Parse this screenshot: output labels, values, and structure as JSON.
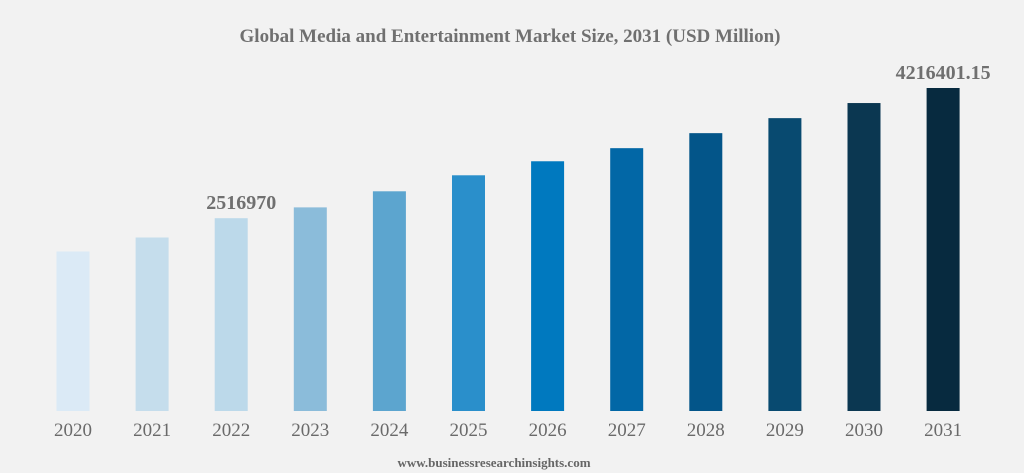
{
  "chart_data": {
    "type": "bar",
    "title": "Global Media and Entertainment Market Size, 2031 (USD Million)",
    "xlabel": "",
    "ylabel": "",
    "categories": [
      "2020",
      "2021",
      "2022",
      "2023",
      "2024",
      "2025",
      "2026",
      "2027",
      "2028",
      "2029",
      "2030",
      "2031"
    ],
    "values": [
      2082000,
      2265000,
      2516970,
      2658000,
      2868000,
      3077000,
      3260000,
      3431000,
      3627000,
      3823000,
      4020000,
      4216401.15
    ],
    "data_labels": {
      "2022": "2516970",
      "2031": "4216401.15"
    },
    "ylim": [
      0,
      4216401.15
    ],
    "grid": false,
    "legend": "none",
    "colors": [
      "#dbeaf6",
      "#c5ddec",
      "#bcd9ea",
      "#8bbcda",
      "#5ca5cf",
      "#2a8fcb",
      "#0079bf",
      "#0267a6",
      "#035589",
      "#084a70",
      "#0b3751",
      "#072a3f"
    ],
    "source": "www.businessresearchinsights.com"
  }
}
